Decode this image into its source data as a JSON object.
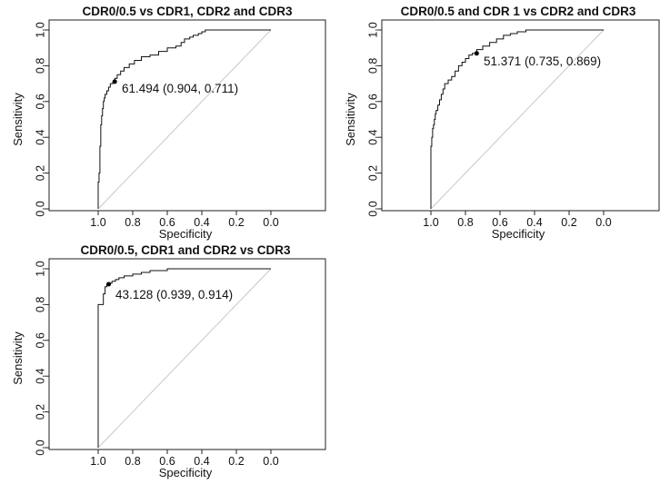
{
  "chart_data": [
    {
      "type": "line",
      "title": "CDR0/0.5 vs CDR1, CDR2 and CDR3",
      "xlabel": "Specificity",
      "ylabel": "Sensitivity",
      "xlim": [
        1.0,
        0.0
      ],
      "ylim": [
        0.0,
        1.0
      ],
      "x_ticks": [
        "1.0",
        "0.8",
        "0.6",
        "0.4",
        "0.2",
        "0.0"
      ],
      "y_ticks": [
        "0.0",
        "0.2",
        "0.4",
        "0.6",
        "0.8",
        "1.0"
      ],
      "grid": false,
      "legend": "none",
      "colors": {
        "roc": "#111111",
        "reference": "#c8c8c8",
        "point": "#000000"
      },
      "series": [
        {
          "x": [
            1.0,
            1.0,
            0.995,
            0.995,
            0.99,
            0.99,
            0.985,
            0.985,
            0.98,
            0.975,
            0.97,
            0.965,
            0.96,
            0.95,
            0.94,
            0.93,
            0.915,
            0.904,
            0.89,
            0.87,
            0.85,
            0.82,
            0.79,
            0.75,
            0.7,
            0.65,
            0.6,
            0.55,
            0.52,
            0.5,
            0.47,
            0.45,
            0.42,
            0.4,
            0.38,
            0.36,
            0.3,
            0.2,
            0.1,
            0.0
          ],
          "y": [
            0.0,
            0.08,
            0.15,
            0.2,
            0.2,
            0.3,
            0.35,
            0.4,
            0.47,
            0.52,
            0.56,
            0.6,
            0.62,
            0.64,
            0.66,
            0.68,
            0.7,
            0.711,
            0.73,
            0.75,
            0.77,
            0.79,
            0.81,
            0.83,
            0.85,
            0.86,
            0.88,
            0.9,
            0.91,
            0.93,
            0.95,
            0.96,
            0.97,
            0.98,
            0.99,
            1.0,
            1.0,
            1.0,
            1.0,
            1.0
          ]
        }
      ],
      "reference_line": {
        "x": [
          1.0,
          0.0
        ],
        "y": [
          0.0,
          1.0
        ]
      },
      "best_point": {
        "x": 0.904,
        "y": 0.711,
        "label": "61.494 (0.904, 0.711)"
      }
    },
    {
      "type": "line",
      "title": "CDR0/0.5 and CDR 1 vs CDR2 and CDR3",
      "xlabel": "Specificity",
      "ylabel": "Sensitivity",
      "xlim": [
        1.0,
        0.0
      ],
      "ylim": [
        0.0,
        1.0
      ],
      "x_ticks": [
        "1.0",
        "0.8",
        "0.6",
        "0.4",
        "0.2",
        "0.0"
      ],
      "y_ticks": [
        "0.0",
        "0.2",
        "0.4",
        "0.6",
        "0.8",
        "1.0"
      ],
      "grid": false,
      "legend": "none",
      "colors": {
        "roc": "#111111",
        "reference": "#c8c8c8",
        "point": "#000000"
      },
      "series": [
        {
          "x": [
            1.0,
            1.0,
            0.995,
            0.99,
            0.985,
            0.98,
            0.975,
            0.97,
            0.96,
            0.95,
            0.94,
            0.93,
            0.92,
            0.9,
            0.88,
            0.86,
            0.84,
            0.82,
            0.8,
            0.78,
            0.76,
            0.735,
            0.7,
            0.66,
            0.62,
            0.58,
            0.54,
            0.5,
            0.45,
            0.4,
            0.35,
            0.3,
            0.2,
            0.1,
            0.0
          ],
          "y": [
            0.0,
            0.3,
            0.35,
            0.4,
            0.45,
            0.47,
            0.5,
            0.53,
            0.55,
            0.58,
            0.61,
            0.64,
            0.67,
            0.7,
            0.72,
            0.74,
            0.77,
            0.8,
            0.82,
            0.84,
            0.86,
            0.869,
            0.89,
            0.91,
            0.93,
            0.95,
            0.97,
            0.98,
            0.99,
            1.0,
            1.0,
            1.0,
            1.0,
            1.0,
            1.0
          ]
        }
      ],
      "reference_line": {
        "x": [
          1.0,
          0.0
        ],
        "y": [
          0.0,
          1.0
        ]
      },
      "best_point": {
        "x": 0.735,
        "y": 0.869,
        "label": "51.371 (0.735, 0.869)"
      }
    },
    {
      "type": "line",
      "title": "CDR0/0.5, CDR1 and CDR2 vs CDR3",
      "xlabel": "Specificity",
      "ylabel": "Sensitivity",
      "xlim": [
        1.0,
        0.0
      ],
      "ylim": [
        0.0,
        1.0
      ],
      "x_ticks": [
        "1.0",
        "0.8",
        "0.6",
        "0.4",
        "0.2",
        "0.0"
      ],
      "y_ticks": [
        "0.0",
        "0.2",
        "0.4",
        "0.6",
        "0.8",
        "1.0"
      ],
      "grid": false,
      "legend": "none",
      "colors": {
        "roc": "#111111",
        "reference": "#c8c8c8",
        "point": "#000000"
      },
      "series": [
        {
          "x": [
            1.0,
            1.0,
            0.97,
            0.97,
            0.96,
            0.96,
            0.95,
            0.939,
            0.92,
            0.9,
            0.88,
            0.85,
            0.8,
            0.75,
            0.7,
            0.6,
            0.5,
            0.4,
            0.3,
            0.2,
            0.1,
            0.0
          ],
          "y": [
            0.0,
            0.8,
            0.8,
            0.86,
            0.86,
            0.9,
            0.9,
            0.914,
            0.92,
            0.93,
            0.94,
            0.95,
            0.96,
            0.97,
            0.98,
            0.99,
            1.0,
            1.0,
            1.0,
            1.0,
            1.0,
            1.0
          ]
        }
      ],
      "reference_line": {
        "x": [
          1.0,
          0.0
        ],
        "y": [
          0.0,
          1.0
        ]
      },
      "best_point": {
        "x": 0.939,
        "y": 0.914,
        "label": "43.128 (0.939, 0.914)"
      }
    }
  ]
}
